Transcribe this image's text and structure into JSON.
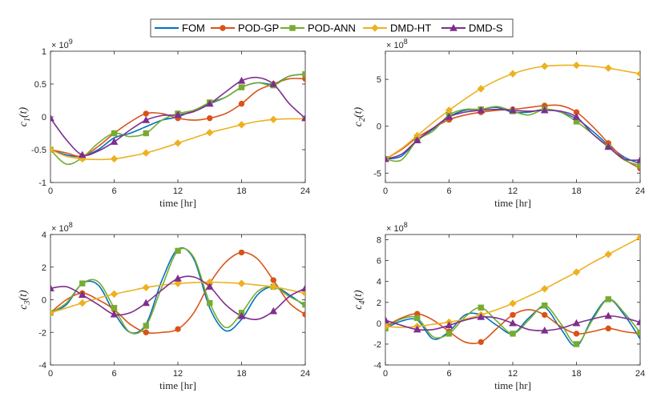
{
  "legend": [
    {
      "name": "FOM",
      "color": "#0072BD",
      "marker": "none"
    },
    {
      "name": "POD-GP",
      "color": "#D95319",
      "marker": "circle"
    },
    {
      "name": "POD-ANN",
      "color": "#77AC30",
      "marker": "square"
    },
    {
      "name": "DMD-HT",
      "color": "#EDB120",
      "marker": "diamond"
    },
    {
      "name": "DMD-S",
      "color": "#7E2F8E",
      "marker": "triangle"
    }
  ],
  "chart_data": [
    {
      "type": "line",
      "ylabel": "c",
      "ylabel_sub": "1",
      "ylabel_suffix": "(t)",
      "xlabel": "time [hr]",
      "exponent": "× 10",
      "exponent_power": "9",
      "xlim": [
        0,
        24
      ],
      "ylim": [
        -1,
        1
      ],
      "xticks": [
        0,
        6,
        12,
        18,
        24
      ],
      "yticks": [
        -1,
        -0.5,
        0,
        0.5,
        1
      ],
      "ytick_labels": [
        "-1",
        "-0.5",
        "0",
        "0.5",
        "1"
      ],
      "series": [
        {
          "name": "FOM",
          "x": [
            0,
            1.5,
            3,
            4.5,
            6,
            7.5,
            9,
            10.5,
            12,
            13.5,
            15,
            16.5,
            18,
            19.5,
            21,
            22.5,
            24
          ],
          "values": [
            -0.5,
            -0.58,
            -0.6,
            -0.5,
            -0.32,
            -0.25,
            -0.15,
            -0.05,
            0.0,
            0.1,
            0.2,
            0.3,
            0.45,
            0.52,
            0.5,
            0.62,
            0.65
          ]
        },
        {
          "name": "POD-GP",
          "x": [
            0,
            1.5,
            3,
            4.5,
            6,
            7.5,
            9,
            10.5,
            12,
            13.5,
            15,
            16.5,
            18,
            19.5,
            21,
            22.5,
            24
          ],
          "values": [
            -0.5,
            -0.55,
            -0.6,
            -0.45,
            -0.25,
            -0.08,
            0.05,
            0.05,
            -0.02,
            -0.05,
            -0.02,
            0.05,
            0.2,
            0.4,
            0.5,
            0.58,
            0.58
          ]
        },
        {
          "name": "POD-ANN",
          "x": [
            0,
            1.5,
            3,
            4.5,
            6,
            7.5,
            9,
            10.5,
            12,
            13.5,
            15,
            16.5,
            18,
            19.5,
            21,
            22.5,
            24
          ],
          "values": [
            -0.5,
            -0.72,
            -0.62,
            -0.4,
            -0.25,
            -0.3,
            -0.25,
            -0.05,
            0.05,
            0.1,
            0.22,
            0.3,
            0.45,
            0.52,
            0.48,
            0.62,
            0.65
          ]
        },
        {
          "name": "DMD-HT",
          "x": [
            0,
            1.5,
            3,
            4.5,
            6,
            7.5,
            9,
            10.5,
            12,
            13.5,
            15,
            16.5,
            18,
            19.5,
            21,
            22.5,
            24
          ],
          "values": [
            -0.5,
            -0.6,
            -0.64,
            -0.65,
            -0.64,
            -0.6,
            -0.55,
            -0.48,
            -0.4,
            -0.32,
            -0.24,
            -0.18,
            -0.12,
            -0.07,
            -0.04,
            -0.03,
            -0.03
          ]
        },
        {
          "name": "DMD-S",
          "x": [
            0,
            1.5,
            3,
            4.5,
            6,
            7.5,
            9,
            10.5,
            12,
            13.5,
            15,
            16.5,
            18,
            19.5,
            21,
            22.5,
            24
          ],
          "values": [
            -0.02,
            -0.35,
            -0.58,
            -0.52,
            -0.38,
            -0.2,
            -0.05,
            0.02,
            0.03,
            0.08,
            0.2,
            0.38,
            0.55,
            0.6,
            0.5,
            0.2,
            -0.02
          ]
        }
      ]
    },
    {
      "type": "line",
      "ylabel": "c",
      "ylabel_sub": "2",
      "ylabel_suffix": "(t)",
      "xlabel": "time [hr]",
      "exponent": "× 10",
      "exponent_power": "8",
      "xlim": [
        0,
        24
      ],
      "ylim": [
        -6,
        8
      ],
      "xticks": [
        0,
        6,
        12,
        18,
        24
      ],
      "yticks": [
        -5,
        0,
        5
      ],
      "ytick_labels": [
        "-5",
        "0",
        "5"
      ],
      "series": [
        {
          "name": "FOM",
          "x": [
            0,
            1.5,
            3,
            4.5,
            6,
            7.5,
            9,
            10.5,
            12,
            13.5,
            15,
            16.5,
            18,
            19.5,
            21,
            22.5,
            24
          ],
          "values": [
            -3.5,
            -3.2,
            -1.5,
            -0.3,
            1.0,
            1.7,
            1.8,
            2.0,
            1.5,
            1.5,
            1.8,
            1.5,
            0.8,
            -0.5,
            -2.0,
            -3.3,
            -4.0
          ]
        },
        {
          "name": "POD-GP",
          "x": [
            0,
            1.5,
            3,
            4.5,
            6,
            7.5,
            9,
            10.5,
            12,
            13.5,
            15,
            16.5,
            18,
            19.5,
            21,
            22.5,
            24
          ],
          "values": [
            -3.5,
            -2.5,
            -1.2,
            -0.2,
            0.7,
            1.2,
            1.5,
            1.7,
            1.8,
            2.0,
            2.2,
            2.2,
            1.5,
            0.0,
            -1.8,
            -3.5,
            -4.5
          ]
        },
        {
          "name": "POD-ANN",
          "x": [
            0,
            1.5,
            3,
            4.5,
            6,
            7.5,
            9,
            10.5,
            12,
            13.5,
            15,
            16.5,
            18,
            19.5,
            21,
            22.5,
            24
          ],
          "values": [
            -3.5,
            -3.6,
            -1.5,
            -0.5,
            1.2,
            1.8,
            1.8,
            2.1,
            1.6,
            1.2,
            1.8,
            1.5,
            0.5,
            -0.8,
            -2.2,
            -3.6,
            -4.2
          ]
        },
        {
          "name": "DMD-HT",
          "x": [
            0,
            1.5,
            3,
            4.5,
            6,
            7.5,
            9,
            10.5,
            12,
            13.5,
            15,
            16.5,
            18,
            19.5,
            21,
            22.5,
            24
          ],
          "values": [
            -3.5,
            -2.4,
            -1.0,
            0.4,
            1.7,
            2.9,
            4.0,
            4.9,
            5.6,
            6.1,
            6.4,
            6.5,
            6.5,
            6.4,
            6.2,
            5.9,
            5.6
          ]
        },
        {
          "name": "DMD-S",
          "x": [
            0,
            1.5,
            3,
            4.5,
            6,
            7.5,
            9,
            10.5,
            12,
            13.5,
            15,
            16.5,
            18,
            19.5,
            21,
            22.5,
            24
          ],
          "values": [
            -3.5,
            -3.0,
            -1.5,
            -0.2,
            1.0,
            1.5,
            1.7,
            1.8,
            1.7,
            1.6,
            1.7,
            1.6,
            1.0,
            -0.8,
            -2.2,
            -3.5,
            -3.6
          ]
        }
      ]
    },
    {
      "type": "line",
      "ylabel": "c",
      "ylabel_sub": "3",
      "ylabel_suffix": "(t)",
      "xlabel": "time [hr]",
      "exponent": "× 10",
      "exponent_power": "8",
      "xlim": [
        0,
        24
      ],
      "ylim": [
        -4,
        4
      ],
      "xticks": [
        0,
        6,
        12,
        18,
        24
      ],
      "yticks": [
        -4,
        -2,
        0,
        2,
        4
      ],
      "ytick_labels": [
        "-4",
        "-2",
        "0",
        "2",
        "4"
      ],
      "series": [
        {
          "name": "FOM",
          "x": [
            0,
            1.5,
            3,
            4.5,
            6,
            7.5,
            9,
            10.5,
            12,
            13.5,
            15,
            16.5,
            18,
            19.5,
            21,
            22.5,
            24
          ],
          "values": [
            -0.8,
            -0.3,
            1.0,
            0.9,
            -0.8,
            -2.0,
            -1.5,
            1.2,
            3.1,
            2.5,
            -0.5,
            -1.9,
            -1.2,
            0.3,
            0.8,
            0.3,
            -0.4
          ]
        },
        {
          "name": "POD-GP",
          "x": [
            0,
            1.5,
            3,
            4.5,
            6,
            7.5,
            9,
            10.5,
            12,
            13.5,
            15,
            16.5,
            18,
            19.5,
            21,
            22.5,
            24
          ],
          "values": [
            -0.8,
            0.0,
            0.4,
            0.0,
            -0.6,
            -1.5,
            -2.0,
            -2.0,
            -1.8,
            -0.8,
            1.0,
            2.3,
            2.9,
            2.5,
            1.2,
            -0.2,
            -0.9
          ]
        },
        {
          "name": "POD-ANN",
          "x": [
            0,
            1.5,
            3,
            4.5,
            6,
            7.5,
            9,
            10.5,
            12,
            13.5,
            15,
            16.5,
            18,
            19.5,
            21,
            22.5,
            24
          ],
          "values": [
            -0.8,
            -0.2,
            1.0,
            1.1,
            -0.5,
            -2.0,
            -1.6,
            0.8,
            3.0,
            2.6,
            -0.2,
            -1.7,
            -0.8,
            0.5,
            0.8,
            0.2,
            -0.3
          ]
        },
        {
          "name": "DMD-HT",
          "x": [
            0,
            1.5,
            3,
            4.5,
            6,
            7.5,
            9,
            10.5,
            12,
            13.5,
            15,
            16.5,
            18,
            19.5,
            21,
            22.5,
            24
          ],
          "values": [
            -0.8,
            -0.5,
            -0.2,
            0.1,
            0.35,
            0.55,
            0.75,
            0.9,
            1.0,
            1.05,
            1.08,
            1.05,
            1.0,
            0.9,
            0.8,
            0.6,
            0.4
          ]
        },
        {
          "name": "DMD-S",
          "x": [
            0,
            1.5,
            3,
            4.5,
            6,
            7.5,
            9,
            10.5,
            12,
            13.5,
            15,
            16.5,
            18,
            19.5,
            21,
            22.5,
            24
          ],
          "values": [
            0.7,
            0.8,
            0.3,
            -0.3,
            -0.9,
            -0.8,
            -0.2,
            0.6,
            1.3,
            1.4,
            0.8,
            -0.3,
            -1.0,
            -1.2,
            -0.7,
            0.2,
            0.7
          ]
        }
      ]
    },
    {
      "type": "line",
      "ylabel": "c",
      "ylabel_sub": "4",
      "ylabel_suffix": "(t)",
      "xlabel": "time [hr]",
      "exponent": "× 10",
      "exponent_power": "8",
      "xlim": [
        0,
        24
      ],
      "ylim": [
        -4,
        8.5
      ],
      "xticks": [
        0,
        6,
        12,
        18,
        24
      ],
      "yticks": [
        -4,
        -2,
        0,
        2,
        4,
        6,
        8
      ],
      "ytick_labels": [
        "-4",
        "-2",
        "0",
        "2",
        "4",
        "6",
        "8"
      ],
      "series": [
        {
          "name": "FOM",
          "x": [
            0,
            1.5,
            3,
            4.5,
            6,
            7.5,
            9,
            10.5,
            12,
            13.5,
            15,
            16.5,
            18,
            19.5,
            21,
            22.5,
            24
          ],
          "values": [
            -0.5,
            0.2,
            0.3,
            -1.5,
            -0.8,
            0.8,
            0.8,
            -0.2,
            -1.0,
            0.5,
            1.5,
            -0.5,
            -2.2,
            0.5,
            2.3,
            0.8,
            -1.5
          ]
        },
        {
          "name": "POD-GP",
          "x": [
            0,
            1.5,
            3,
            4.5,
            6,
            7.5,
            9,
            10.5,
            12,
            13.5,
            15,
            16.5,
            18,
            19.5,
            21,
            22.5,
            24
          ],
          "values": [
            -0.3,
            0.5,
            0.9,
            0.3,
            -0.8,
            -1.8,
            -1.8,
            -0.5,
            0.8,
            1.3,
            0.8,
            -0.3,
            -1.0,
            -0.8,
            -0.5,
            -0.8,
            -1.0
          ]
        },
        {
          "name": "POD-ANN",
          "x": [
            0,
            1.5,
            3,
            4.5,
            6,
            7.5,
            9,
            10.5,
            12,
            13.5,
            15,
            16.5,
            18,
            19.5,
            21,
            22.5,
            24
          ],
          "values": [
            -0.5,
            0.4,
            0.5,
            -1.3,
            -1.0,
            0.6,
            1.5,
            0.2,
            -1.0,
            0.3,
            1.7,
            0.0,
            -2.0,
            0.3,
            2.3,
            1.0,
            -0.9
          ]
        },
        {
          "name": "DMD-HT",
          "x": [
            0,
            1.5,
            3,
            4.5,
            6,
            7.5,
            9,
            10.5,
            12,
            13.5,
            15,
            16.5,
            18,
            19.5,
            21,
            22.5,
            24
          ],
          "values": [
            -0.3,
            -0.4,
            -0.3,
            -0.1,
            0.1,
            0.4,
            0.8,
            1.3,
            1.9,
            2.6,
            3.3,
            4.1,
            4.9,
            5.8,
            6.6,
            7.4,
            8.2
          ]
        },
        {
          "name": "DMD-S",
          "x": [
            0,
            1.5,
            3,
            4.5,
            6,
            7.5,
            9,
            10.5,
            12,
            13.5,
            15,
            16.5,
            18,
            19.5,
            21,
            22.5,
            24
          ],
          "values": [
            0.3,
            -0.2,
            -0.6,
            -0.6,
            -0.2,
            0.3,
            0.6,
            0.5,
            0.0,
            -0.6,
            -0.7,
            -0.5,
            0.0,
            0.4,
            0.7,
            0.5,
            0.1
          ]
        }
      ]
    }
  ]
}
